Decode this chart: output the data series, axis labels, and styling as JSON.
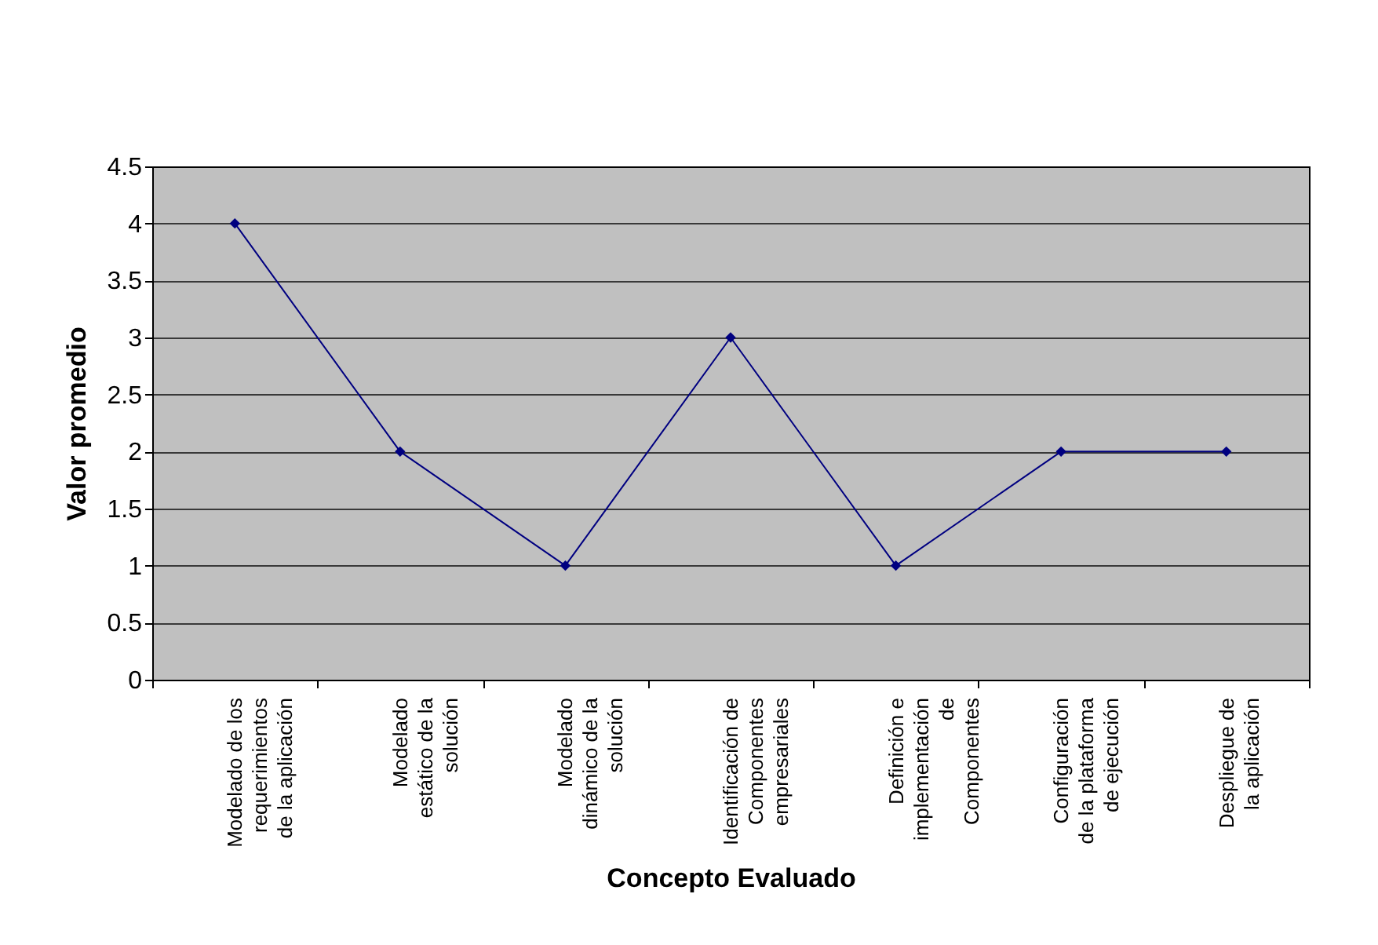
{
  "chart_data": {
    "type": "line",
    "xlabel": "Concepto Evaluado",
    "ylabel": "Valor promedio",
    "categories": [
      "Modelado de los\nrequerimientos\nde la aplicación",
      "Modelado\nestático de la\nsolución",
      "Modelado\ndinámico de la\nsolución",
      "Identificación de\nComponentes\nempresariales",
      "Definición e\nimplementación\nde\nComponentes",
      "Configuración\nde la plataforma\nde ejecución",
      "Despliegue de\nla aplicación"
    ],
    "series": [
      {
        "color": "#000080",
        "values": [
          4,
          2,
          1,
          3,
          1,
          2,
          2
        ]
      }
    ],
    "ylim": [
      0,
      4.5
    ],
    "yticks": [
      0,
      0.5,
      1,
      1.5,
      2,
      2.5,
      3,
      3.5,
      4,
      4.5
    ],
    "grid": "y",
    "marker": "diamond",
    "line_style": "solid",
    "legend": false
  }
}
